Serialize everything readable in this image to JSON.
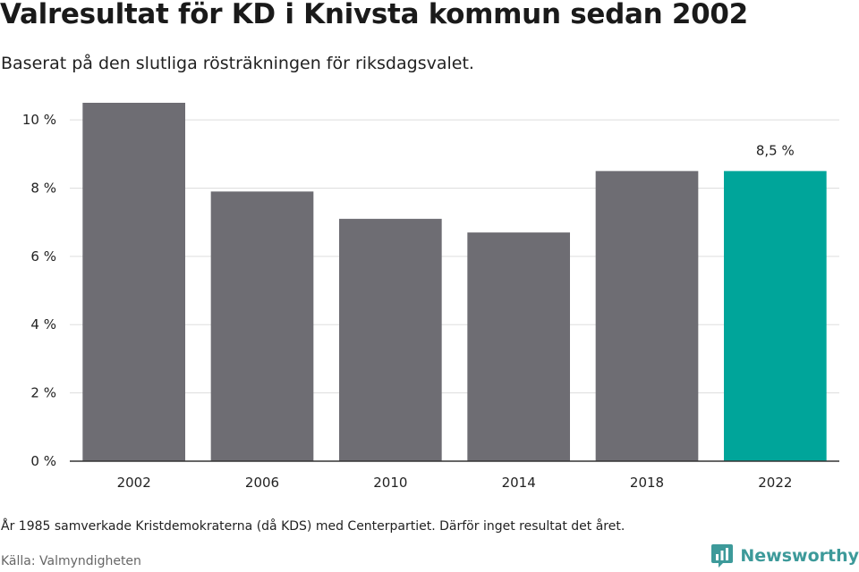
{
  "header": {
    "title": "Valresultat för KD i Knivsta kommun sedan 2002",
    "subtitle": "Baserat på den slutliga rösträkningen för riksdagsvalet."
  },
  "chart_data": {
    "type": "bar",
    "categories": [
      "2002",
      "2006",
      "2010",
      "2014",
      "2018",
      "2022"
    ],
    "values": [
      10.5,
      7.9,
      7.1,
      6.7,
      8.5,
      8.5
    ],
    "unit": "%",
    "ylim": [
      0,
      10.5
    ],
    "yticks": [
      0,
      2,
      4,
      6,
      8,
      10
    ],
    "ytick_labels": [
      "0 %",
      "2 %",
      "4 %",
      "6 %",
      "8 %",
      "10 %"
    ],
    "grid": true,
    "highlight_index": 5,
    "data_labels": [
      {
        "index": 5,
        "text": "8,5 %"
      }
    ],
    "colors": {
      "bar": "#6e6d73",
      "highlight": "#00a59a",
      "grid": "#dddddd",
      "axis": "#333333"
    }
  },
  "footer": {
    "note": "År 1985 samverkade Kristdemokraterna (då KDS) med Centerpartiet. Därför inget resultat det året.",
    "source": "Källa: Valmyndigheten",
    "brand": "Newsworthy"
  },
  "icons": {
    "brand_logo": "newsworthy-logo-icon"
  }
}
